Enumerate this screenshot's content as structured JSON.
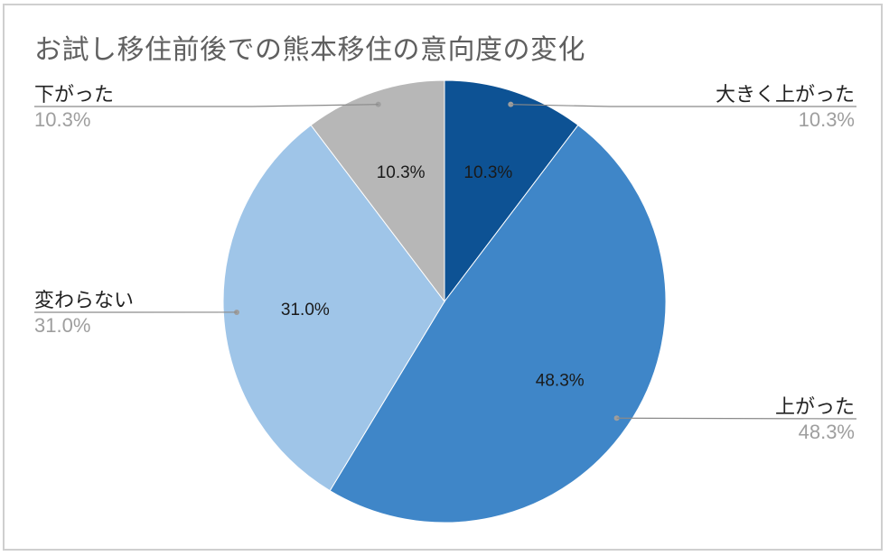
{
  "chart_data": {
    "type": "pie",
    "title": "お試し移住前後での熊本移住の意向度の変化",
    "slices": [
      {
        "name": "大きく上がった",
        "value": 10.3,
        "label": "10.3%",
        "color": "#0d5294"
      },
      {
        "name": "上がった",
        "value": 48.3,
        "label": "48.3%",
        "color": "#3f86c8"
      },
      {
        "name": "変わらない",
        "value": 31.0,
        "label": "31.0%",
        "color": "#9fc5e8"
      },
      {
        "name": "下がった",
        "value": 10.3,
        "label": "10.3%",
        "color": "#b7b7b7"
      }
    ],
    "legend": "callout labels outside slices"
  }
}
